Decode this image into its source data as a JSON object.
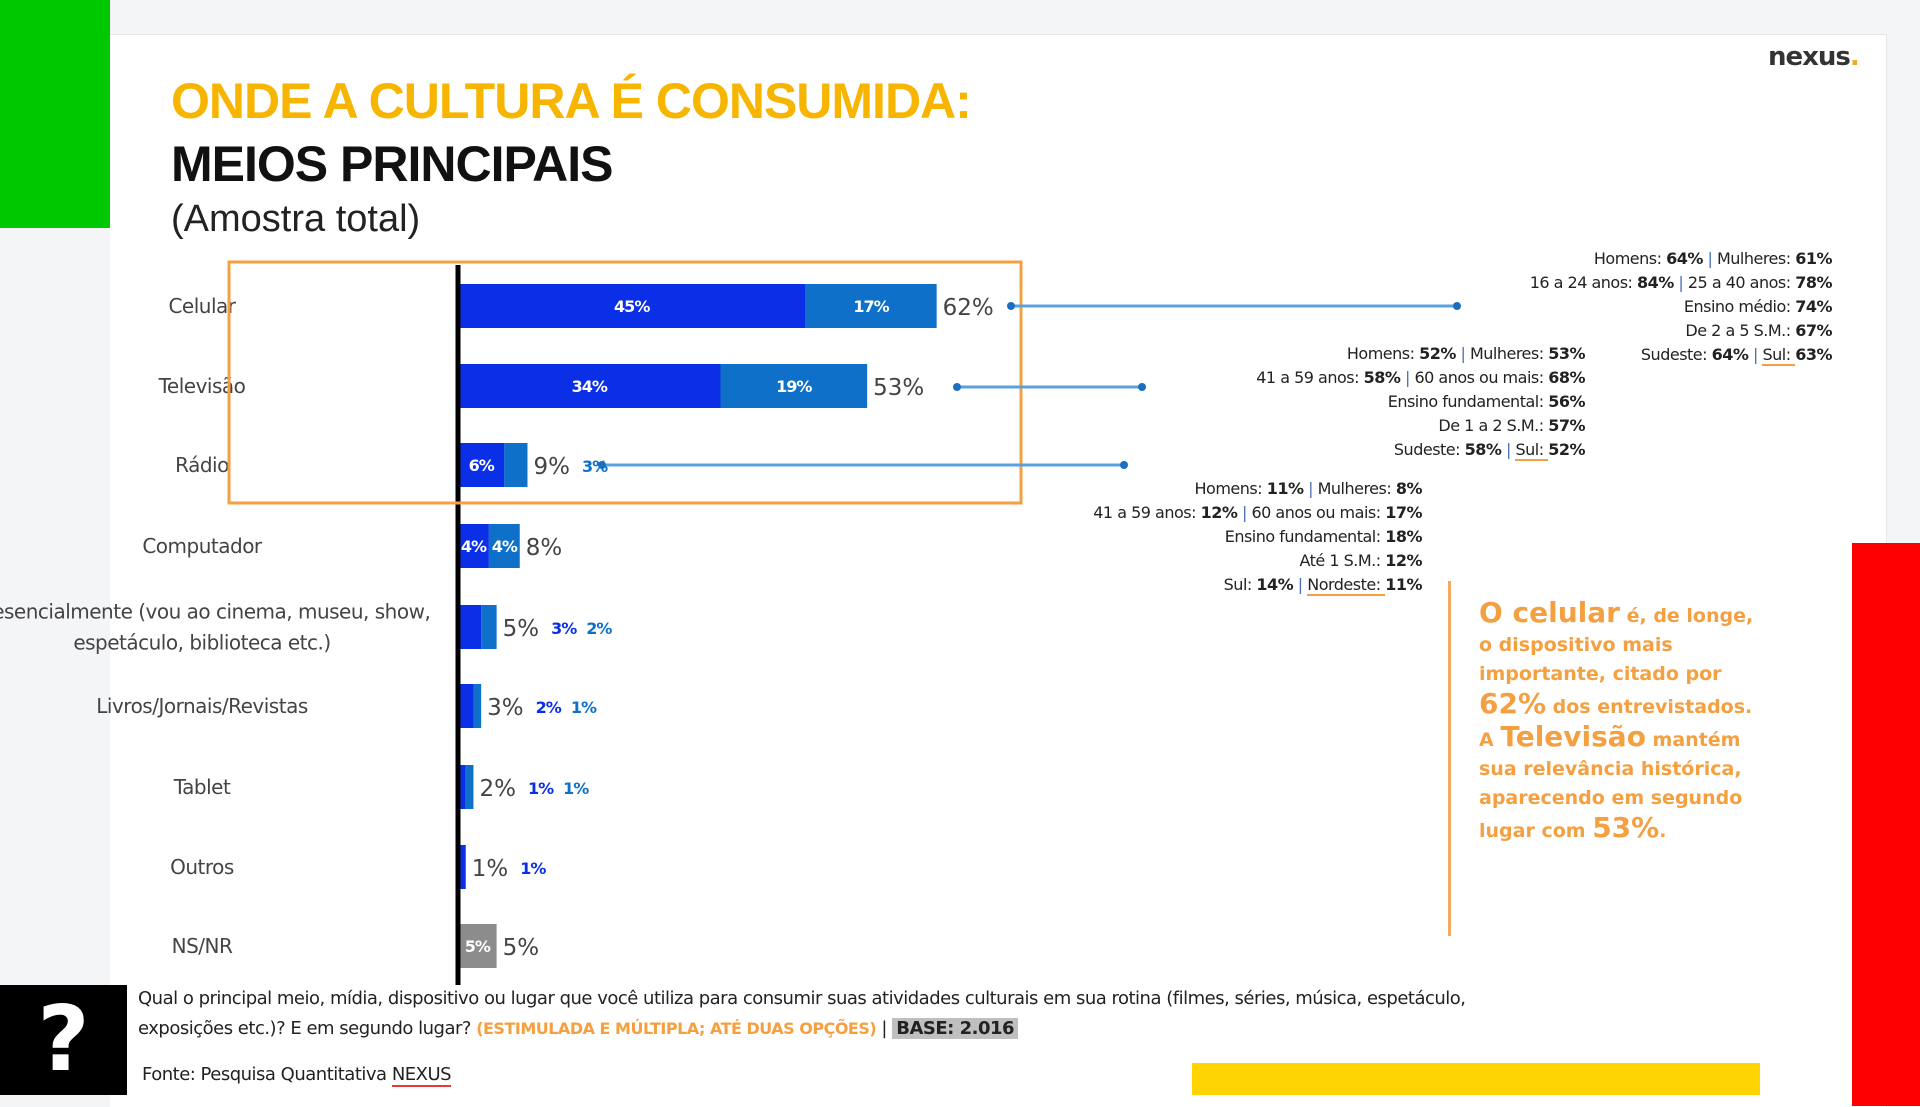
{
  "header": {
    "logo": "nexus",
    "title_line1": "ONDE A CULTURA É CONSUMIDA:",
    "title_line2": "MEIOS PRINCIPAIS",
    "subtitle": "(Amostra total)"
  },
  "colors": {
    "first": "#0a2fe6",
    "second": "#0e70c8",
    "nsnr": "#8c8c8c",
    "accent": "#f5a040",
    "title": "#f7b500"
  },
  "chart_data": {
    "type": "bar",
    "orientation": "horizontal-stacked",
    "categories": [
      "Celular",
      "Televisão",
      "Rádio",
      "Computador",
      "Presencialmente (vou ao cinema, museu, show, | espetáculo, biblioteca etc.)",
      "Livros/Jornais/Revistas",
      "Tablet",
      "Outros",
      "NS/NR"
    ],
    "series": [
      {
        "values": [
          45,
          34,
          6,
          4,
          3,
          2,
          1,
          1,
          5
        ],
        "labels": [
          "45%",
          "34%",
          "6%",
          "4%",
          "3%",
          "2%",
          "1%",
          "1%",
          "5%"
        ]
      },
      {
        "values": [
          17,
          19,
          3,
          4,
          2,
          1,
          1,
          0,
          0
        ],
        "labels": [
          "17%",
          "19%",
          "3%",
          "4%",
          "2%",
          "1%",
          "1%",
          "",
          ""
        ]
      }
    ],
    "totals": [
      "62%",
      "53%",
      "9%",
      "8%",
      "5%",
      "3%",
      "2%",
      "1%",
      "5%"
    ],
    "highlighted": [
      "Celular",
      "Televisão",
      "Rádio"
    ]
  },
  "callouts": {
    "celular": [
      [
        "Homens: 64%",
        "Mulheres: 61%"
      ],
      [
        "16 a 24 anos: 84%",
        "25 a 40 anos: 78%"
      ],
      [
        "Ensino médio: 74%"
      ],
      [
        "De 2 a 5 S.M.: 67%"
      ],
      [
        "Sudeste: 64%",
        "Sul: 63%"
      ]
    ],
    "televisao": [
      [
        "Homens: 52%",
        "Mulheres: 53%"
      ],
      [
        "41 a 59 anos: 58%",
        "60 anos ou mais: 68%"
      ],
      [
        "Ensino fundamental: 56%"
      ],
      [
        "De 1 a 2 S.M.: 57%"
      ],
      [
        "Sudeste: 58%",
        "Sul: 52%"
      ]
    ],
    "radio": [
      [
        "Homens: 11%",
        "Mulheres: 8%"
      ],
      [
        "41 a 59 anos: 12%",
        "60 anos ou mais: 17%"
      ],
      [
        "Ensino fundamental: 18%"
      ],
      [
        "Até 1 S.M.: 12%"
      ],
      [
        "Sul: 14%",
        "Nordeste: 11%"
      ]
    ]
  },
  "note": {
    "p1": "O celular",
    "p2": " é, de longe, o dispositivo mais importante, citado por ",
    "p3": "62%",
    "p4": " dos entrevistados. A ",
    "p5": "Televisão",
    "p6": " mantém sua relevância histórica, aparecendo em segundo lugar com ",
    "p7": "53%",
    "p8": "."
  },
  "footer": {
    "question_mark": "?",
    "question": "Qual o principal meio, mídia, dispositivo ou lugar que você utiliza para consumir suas atividades culturais em sua rotina (filmes, séries, música, espetáculo, exposições etc.)? E em segundo lugar? ",
    "question_note": "(ESTIMULADA E MÚLTIPLA; ATÉ  DUAS OPÇÕES)",
    "separator": " | ",
    "base": "BASE: 2.016",
    "source_prefix": "Fonte: Pesquisa Quantitativa ",
    "source_name": "NEXUS"
  }
}
